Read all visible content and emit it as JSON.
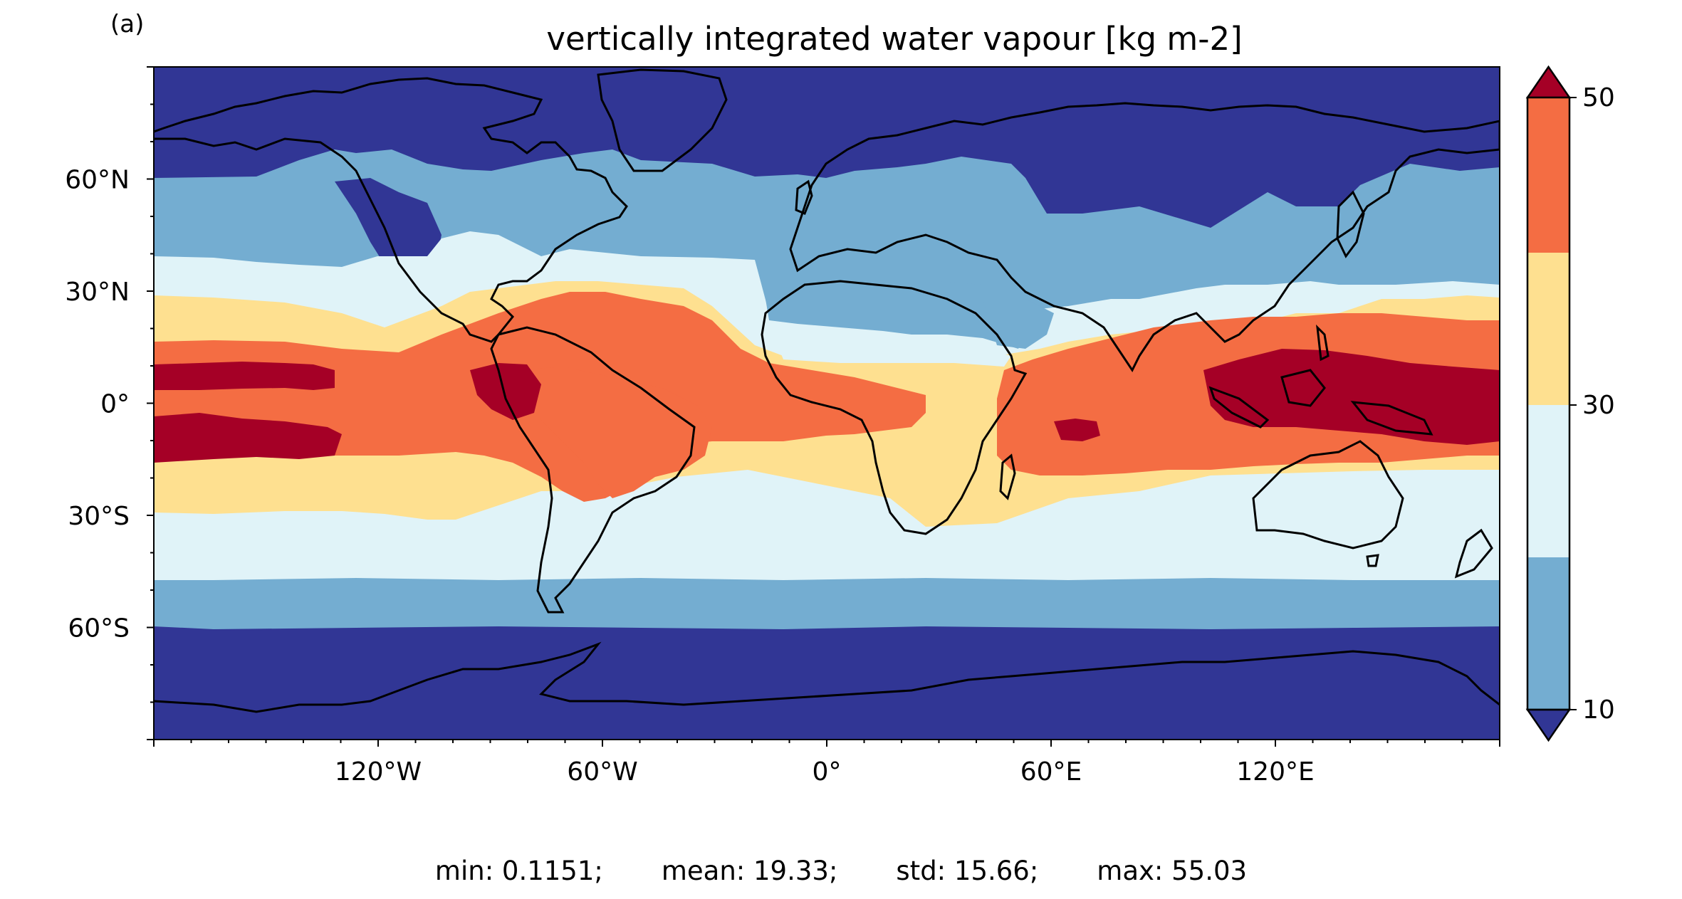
{
  "panel_label": "(a)",
  "title": "vertically integrated water vapour [kg m-2]",
  "colorbar": {
    "ticks": [
      "50",
      "30",
      "10"
    ],
    "bounds": [
      10,
      20,
      30,
      40,
      50
    ],
    "extend": "both",
    "colors": {
      "under": "#313695",
      "b10_20": "#74add1",
      "b20_30": "#e0f3f8",
      "b30_40": "#fee090",
      "b40_50": "#f46d43",
      "over": "#a50026"
    }
  },
  "axes": {
    "lon_ticks": [
      "120°W",
      "60°W",
      "0°",
      "60°E",
      "120°E"
    ],
    "lat_ticks": [
      "60°N",
      "30°N",
      "0°",
      "30°S",
      "60°S"
    ]
  },
  "stats": {
    "min": "min: 0.1151;",
    "mean": "mean: 19.33;",
    "std": "std: 15.66;",
    "max": "max: 55.03"
  },
  "land_outline_color": "#000000"
}
